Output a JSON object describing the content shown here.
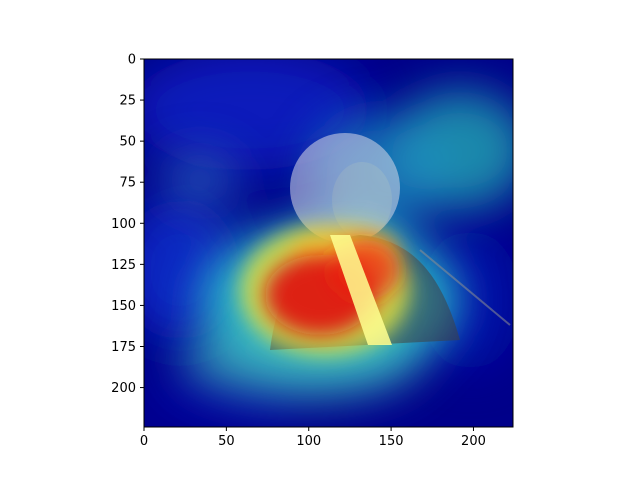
{
  "chart_data": {
    "type": "heatmap",
    "title": "",
    "xlabel": "",
    "ylabel": "",
    "xlim": [
      0,
      224
    ],
    "ylim": [
      224,
      0
    ],
    "y_axis_inverted": true,
    "grid": false,
    "colormap": "jet",
    "overlay": "grayscale photo of a person (woman at podium) under a semi-transparent heatmap",
    "x_ticks": [
      {
        "value": 0,
        "label": "0"
      },
      {
        "value": 50,
        "label": "50"
      },
      {
        "value": 100,
        "label": "100"
      },
      {
        "value": 150,
        "label": "150"
      },
      {
        "value": 200,
        "label": "200"
      }
    ],
    "y_ticks": [
      {
        "value": 0,
        "label": "0"
      },
      {
        "value": 25,
        "label": "25"
      },
      {
        "value": 50,
        "label": "50"
      },
      {
        "value": 75,
        "label": "75"
      },
      {
        "value": 100,
        "label": "100"
      },
      {
        "value": 125,
        "label": "125"
      },
      {
        "value": 150,
        "label": "150"
      },
      {
        "value": 175,
        "label": "175"
      },
      {
        "value": 200,
        "label": "200"
      }
    ],
    "activation_peaks": [
      {
        "x": 112,
        "y": 145,
        "intensity": 1.0
      },
      {
        "x": 140,
        "y": 160,
        "intensity": 0.95
      },
      {
        "x": 122,
        "y": 120,
        "intensity": 0.7
      },
      {
        "x": 100,
        "y": 165,
        "intensity": 0.75
      },
      {
        "x": 205,
        "y": 50,
        "intensity": 0.5
      },
      {
        "x": 150,
        "y": 60,
        "intensity": 0.45
      },
      {
        "x": 60,
        "y": 180,
        "intensity": 0.35
      }
    ],
    "colors": {
      "background": "#000080",
      "low": "#00007f",
      "mid": "#00ffff",
      "high": "#ff0000",
      "peak_highlight": "#ffff80"
    }
  }
}
